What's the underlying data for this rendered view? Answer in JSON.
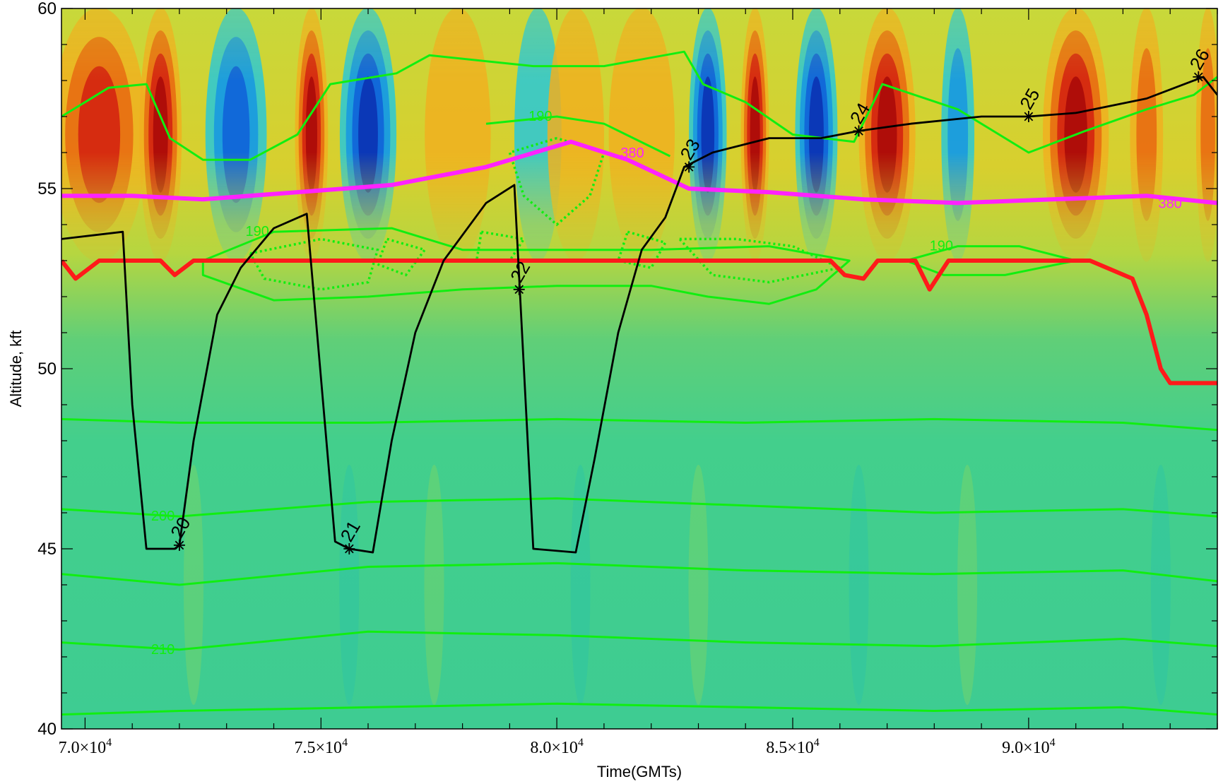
{
  "chart_data": {
    "type": "contour",
    "title": "",
    "xlabel": "Time(GMTs)",
    "ylabel": "Altitude, kft",
    "xlim": [
      69500,
      94000
    ],
    "ylim": [
      40,
      60
    ],
    "x_ticks": [
      {
        "value": 70000,
        "mantissa": "7.0",
        "exp": "4"
      },
      {
        "value": 75000,
        "mantissa": "7.5",
        "exp": "4"
      },
      {
        "value": 80000,
        "mantissa": "8.0",
        "exp": "4"
      },
      {
        "value": 85000,
        "mantissa": "8.5",
        "exp": "4"
      },
      {
        "value": 90000,
        "mantissa": "9.0",
        "exp": "4"
      }
    ],
    "y_ticks": [
      40,
      45,
      50,
      55,
      60
    ],
    "colors": {
      "flight_track": "#000000",
      "temperature_contour": "#11ee11",
      "theta_380": "#ff22ff",
      "tropopause": "#ff1a1a"
    },
    "flight_track": {
      "name": "",
      "points": [
        [
          69500,
          53.6
        ],
        [
          70800,
          53.8
        ],
        [
          71000,
          49
        ],
        [
          71300,
          45.0
        ],
        [
          71900,
          45.0
        ],
        [
          72000,
          45.1
        ],
        [
          72300,
          48
        ],
        [
          72800,
          51.5
        ],
        [
          73300,
          52.8
        ],
        [
          74000,
          53.9
        ],
        [
          74700,
          54.3
        ],
        [
          75300,
          45.2
        ],
        [
          75600,
          45.0
        ],
        [
          76100,
          44.9
        ],
        [
          76500,
          48
        ],
        [
          77000,
          51
        ],
        [
          77600,
          53
        ],
        [
          78500,
          54.6
        ],
        [
          79100,
          55.1
        ],
        [
          79500,
          45.0
        ],
        [
          80400,
          44.9
        ],
        [
          80800,
          47.5
        ],
        [
          81300,
          51.0
        ],
        [
          81800,
          53.3
        ],
        [
          82300,
          54.2
        ],
        [
          82700,
          55.6
        ],
        [
          83300,
          56.0
        ],
        [
          84500,
          56.4
        ],
        [
          85600,
          56.4
        ],
        [
          86400,
          56.6
        ],
        [
          87500,
          56.8
        ],
        [
          89000,
          57.0
        ],
        [
          90000,
          57.0
        ],
        [
          91000,
          57.1
        ],
        [
          92500,
          57.5
        ],
        [
          93700,
          58.1
        ],
        [
          94000,
          57.6
        ]
      ]
    },
    "waypoints": [
      {
        "label": "20",
        "x": 72000,
        "y": 45.1
      },
      {
        "label": "21",
        "x": 75600,
        "y": 45.0
      },
      {
        "label": "22",
        "x": 79200,
        "y": 52.2
      },
      {
        "label": "23",
        "x": 82800,
        "y": 55.6
      },
      {
        "label": "24",
        "x": 86400,
        "y": 56.6
      },
      {
        "label": "25",
        "x": 90000,
        "y": 57.0
      },
      {
        "label": "26",
        "x": 93600,
        "y": 58.1
      }
    ],
    "theta_380": {
      "label": "380",
      "points": [
        [
          69500,
          54.8
        ],
        [
          71000,
          54.8
        ],
        [
          72500,
          54.7
        ],
        [
          74500,
          54.9
        ],
        [
          76500,
          55.1
        ],
        [
          78500,
          55.6
        ],
        [
          80300,
          56.3
        ],
        [
          81500,
          55.8
        ],
        [
          82800,
          55.0
        ],
        [
          84500,
          54.9
        ],
        [
          86500,
          54.7
        ],
        [
          88500,
          54.6
        ],
        [
          90500,
          54.7
        ],
        [
          92500,
          54.8
        ],
        [
          94000,
          54.6
        ]
      ]
    },
    "tropopause": {
      "name": "",
      "points": [
        [
          69500,
          53.0
        ],
        [
          69800,
          52.5
        ],
        [
          70300,
          53.0
        ],
        [
          71600,
          53.0
        ],
        [
          71900,
          52.6
        ],
        [
          72300,
          53.0
        ],
        [
          85800,
          53.0
        ],
        [
          86100,
          52.6
        ],
        [
          86500,
          52.5
        ],
        [
          86800,
          53.0
        ],
        [
          87600,
          53.0
        ],
        [
          87900,
          52.2
        ],
        [
          88300,
          53.0
        ],
        [
          91300,
          53.0
        ],
        [
          92200,
          52.5
        ],
        [
          92500,
          51.5
        ],
        [
          92800,
          50.0
        ],
        [
          93000,
          49.6
        ],
        [
          94000,
          49.6
        ]
      ]
    },
    "temperature_contours": [
      {
        "label": "",
        "points": [
          [
            69500,
            40.4
          ],
          [
            72000,
            40.5
          ],
          [
            76000,
            40.6
          ],
          [
            80000,
            40.7
          ],
          [
            84000,
            40.6
          ],
          [
            88000,
            40.5
          ],
          [
            92000,
            40.6
          ],
          [
            94000,
            40.4
          ]
        ]
      },
      {
        "label": "210",
        "points": [
          [
            69500,
            42.4
          ],
          [
            72000,
            42.2
          ],
          [
            76000,
            42.7
          ],
          [
            80000,
            42.6
          ],
          [
            84000,
            42.4
          ],
          [
            88000,
            42.3
          ],
          [
            92000,
            42.5
          ],
          [
            94000,
            42.3
          ]
        ]
      },
      {
        "label": "",
        "points": [
          [
            69500,
            44.3
          ],
          [
            72000,
            44.0
          ],
          [
            76000,
            44.5
          ],
          [
            80000,
            44.6
          ],
          [
            84000,
            44.4
          ],
          [
            88000,
            44.3
          ],
          [
            92000,
            44.4
          ],
          [
            94000,
            44.1
          ]
        ]
      },
      {
        "label": "200",
        "points": [
          [
            69500,
            46.1
          ],
          [
            72000,
            45.9
          ],
          [
            76000,
            46.3
          ],
          [
            80000,
            46.4
          ],
          [
            84000,
            46.2
          ],
          [
            88000,
            46.0
          ],
          [
            92000,
            46.1
          ],
          [
            94000,
            45.9
          ]
        ]
      },
      {
        "label": "",
        "points": [
          [
            69500,
            48.6
          ],
          [
            72000,
            48.5
          ],
          [
            76000,
            48.5
          ],
          [
            80000,
            48.6
          ],
          [
            84000,
            48.5
          ],
          [
            88000,
            48.6
          ],
          [
            92000,
            48.5
          ],
          [
            94000,
            48.3
          ]
        ]
      },
      {
        "label": "",
        "points": [
          [
            69500,
            57.0
          ],
          [
            70500,
            57.8
          ],
          [
            71300,
            57.9
          ],
          [
            71800,
            56.4
          ],
          [
            72500,
            55.8
          ],
          [
            73500,
            55.8
          ],
          [
            74500,
            56.5
          ],
          [
            75200,
            57.9
          ],
          [
            76600,
            58.2
          ],
          [
            77300,
            58.7
          ],
          [
            79500,
            58.4
          ],
          [
            81000,
            58.4
          ],
          [
            82700,
            58.8
          ],
          [
            83100,
            57.9
          ],
          [
            84000,
            57.4
          ],
          [
            85000,
            56.5
          ],
          [
            86300,
            56.3
          ],
          [
            86900,
            57.9
          ],
          [
            88500,
            57.2
          ],
          [
            90000,
            56.0
          ],
          [
            91200,
            56.6
          ],
          [
            92500,
            57.2
          ],
          [
            93500,
            57.6
          ],
          [
            94000,
            58.1
          ]
        ]
      },
      {
        "label": "190",
        "points": [
          [
            78500,
            56.8
          ],
          [
            80000,
            57.0
          ],
          [
            81000,
            56.8
          ],
          [
            82400,
            55.9
          ]
        ]
      },
      {
        "label": "190",
        "points": [
          [
            72500,
            53.0
          ],
          [
            74000,
            53.8
          ],
          [
            76500,
            53.9
          ],
          [
            78000,
            53.3
          ],
          [
            80000,
            53.3
          ],
          [
            82000,
            53.3
          ],
          [
            84500,
            53.4
          ],
          [
            86200,
            53.0
          ],
          [
            85500,
            52.2
          ],
          [
            84500,
            51.8
          ],
          [
            83200,
            52.0
          ],
          [
            82000,
            52.3
          ],
          [
            80000,
            52.3
          ],
          [
            78000,
            52.2
          ],
          [
            76000,
            52.0
          ],
          [
            74000,
            51.9
          ],
          [
            72500,
            52.6
          ],
          [
            72500,
            53.0
          ]
        ]
      },
      {
        "label": "190",
        "points": [
          [
            87400,
            53.0
          ],
          [
            88500,
            53.4
          ],
          [
            89800,
            53.4
          ],
          [
            91000,
            53.0
          ],
          [
            89500,
            52.6
          ],
          [
            88200,
            52.6
          ],
          [
            87400,
            53.0
          ]
        ]
      }
    ],
    "dotted_contours": [
      {
        "points": [
          [
            80000,
            56.4
          ],
          [
            79000,
            56.0
          ],
          [
            79300,
            54.8
          ],
          [
            80000,
            54.0
          ],
          [
            80700,
            54.8
          ],
          [
            81000,
            56.0
          ],
          [
            80000,
            56.4
          ]
        ]
      },
      {
        "points": [
          [
            73500,
            53.2
          ],
          [
            75000,
            53.6
          ],
          [
            76200,
            53.3
          ],
          [
            76000,
            52.4
          ],
          [
            75000,
            52.2
          ],
          [
            73800,
            52.5
          ],
          [
            73500,
            53.2
          ]
        ]
      },
      {
        "points": [
          [
            76400,
            53.6
          ],
          [
            77200,
            53.3
          ],
          [
            76800,
            52.6
          ],
          [
            76200,
            52.9
          ],
          [
            76400,
            53.6
          ]
        ]
      },
      {
        "points": [
          [
            78400,
            53.8
          ],
          [
            79300,
            53.6
          ],
          [
            79000,
            53.0
          ],
          [
            78300,
            53.0
          ],
          [
            78400,
            53.8
          ]
        ]
      },
      {
        "points": [
          [
            81500,
            53.8
          ],
          [
            82300,
            53.5
          ],
          [
            82000,
            52.8
          ],
          [
            81300,
            53.0
          ],
          [
            81500,
            53.8
          ]
        ]
      },
      {
        "points": [
          [
            82600,
            53.6
          ],
          [
            83800,
            53.6
          ],
          [
            85000,
            53.4
          ],
          [
            86000,
            52.8
          ],
          [
            84500,
            52.4
          ],
          [
            83300,
            52.6
          ],
          [
            82600,
            53.6
          ]
        ]
      }
    ],
    "field_bands": [
      {
        "x": 70300,
        "w": 2000,
        "amp": 0.85
      },
      {
        "x": 71600,
        "w": 900,
        "amp": 1.0
      },
      {
        "x": 73200,
        "w": 1300,
        "amp": -0.7
      },
      {
        "x": 74800,
        "w": 700,
        "amp": 0.95
      },
      {
        "x": 76000,
        "w": 1200,
        "amp": -0.95
      },
      {
        "x": 77900,
        "w": 1400,
        "amp": 0.35
      },
      {
        "x": 79600,
        "w": 1000,
        "amp": -0.3
      },
      {
        "x": 80400,
        "w": 1200,
        "amp": 0.2
      },
      {
        "x": 81800,
        "w": 1400,
        "amp": 0.3
      },
      {
        "x": 83200,
        "w": 800,
        "amp": -0.9
      },
      {
        "x": 84200,
        "w": 600,
        "amp": 0.95
      },
      {
        "x": 85500,
        "w": 900,
        "amp": -0.9
      },
      {
        "x": 87000,
        "w": 1200,
        "amp": 0.95
      },
      {
        "x": 88500,
        "w": 700,
        "amp": -0.5
      },
      {
        "x": 91000,
        "w": 1400,
        "amp": 0.95
      },
      {
        "x": 92500,
        "w": 700,
        "amp": 0.6
      },
      {
        "x": 93800,
        "w": 500,
        "amp": 0.5
      }
    ]
  }
}
